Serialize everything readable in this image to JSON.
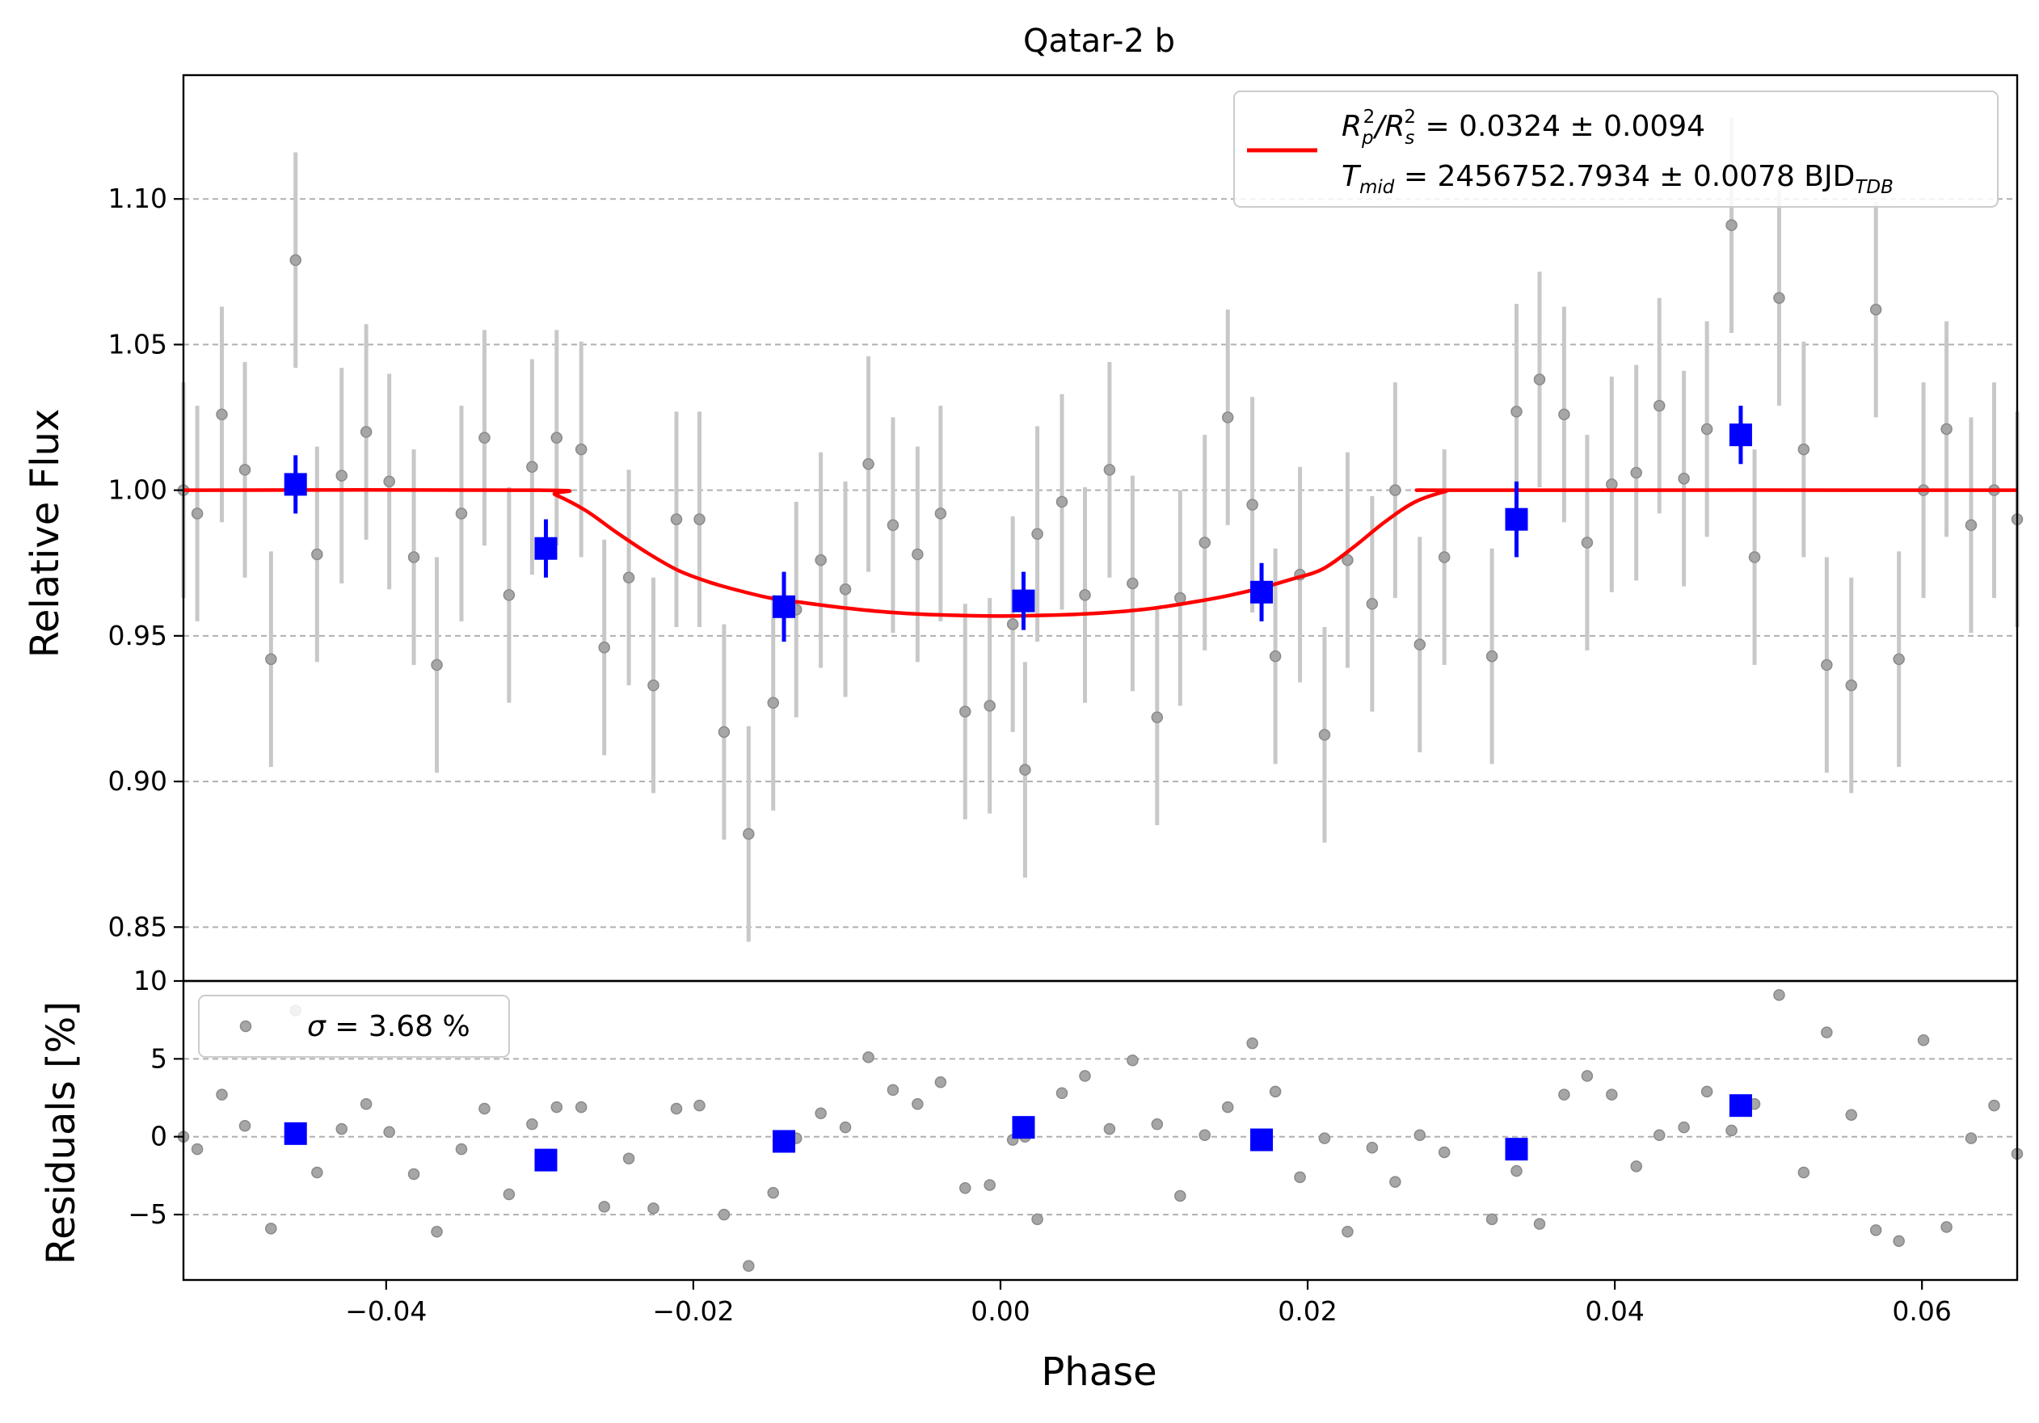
{
  "chart_data": [
    {
      "type": "scatter",
      "panel": "transit",
      "title": "Qatar-2 b",
      "xlabel": "",
      "ylabel": "Relative Flux",
      "xlim": [
        -0.0532,
        0.0662
      ],
      "ylim": [
        0.8315,
        1.1425
      ],
      "yticks": [
        0.85,
        0.9,
        0.95,
        1.0,
        1.05,
        1.1
      ],
      "ytick_labels": [
        "0.85",
        "0.90",
        "0.95",
        "1.00",
        "1.05",
        "1.10"
      ],
      "grid": "y, dashed",
      "legend_position": "top-right",
      "legend": {
        "rp_prefix": "R",
        "rp_sub": "p",
        "rp_sup": "2",
        "rs_prefix": "/R",
        "rs_sub": "s",
        "rs_sup": "2",
        "rprs_value": " = 0.0324 ± 0.0094",
        "tmid_prefix": "T",
        "tmid_sub": "mid",
        "tmid_value": " = 2456752.7934 ± 0.0078 BJD",
        "tmid_unit_sub": "TDB"
      },
      "model": {
        "phase": [
          -0.0532,
          -0.03,
          -0.029,
          -0.027,
          -0.025,
          -0.023,
          -0.021,
          -0.019,
          -0.017,
          -0.015,
          -0.013,
          -0.01,
          -0.007,
          -0.004,
          0.0,
          0.004,
          0.007,
          0.01,
          0.013,
          0.015,
          0.017,
          0.019,
          0.021,
          0.023,
          0.025,
          0.027,
          0.029,
          0.03,
          0.0662
        ],
        "flux": [
          1.0,
          1.0,
          0.9985,
          0.993,
          0.9855,
          0.9785,
          0.9725,
          0.9685,
          0.9655,
          0.963,
          0.9615,
          0.9595,
          0.958,
          0.9572,
          0.9568,
          0.9572,
          0.958,
          0.9595,
          0.962,
          0.964,
          0.9665,
          0.9695,
          0.973,
          0.9805,
          0.989,
          0.996,
          0.9996,
          1.0,
          1.0
        ]
      },
      "observations": {
        "phase": [
          -0.0532,
          -0.0523,
          -0.0507,
          -0.0492,
          -0.0475,
          -0.0459,
          -0.0445,
          -0.0429,
          -0.0413,
          -0.0398,
          -0.0382,
          -0.0367,
          -0.0351,
          -0.0336,
          -0.032,
          -0.0305,
          -0.0289,
          -0.0273,
          -0.0258,
          -0.0242,
          -0.0226,
          -0.0211,
          -0.0196,
          -0.018,
          -0.0164,
          -0.0148,
          -0.0133,
          -0.0117,
          -0.0101,
          -0.0086,
          -0.007,
          -0.0054,
          -0.0039,
          -0.0023,
          -0.0007,
          0.0008,
          0.0016,
          0.0024,
          0.004,
          0.0055,
          0.0071,
          0.0086,
          0.0102,
          0.0117,
          0.0133,
          0.0148,
          0.0164,
          0.0179,
          0.0195,
          0.0211,
          0.0226,
          0.0242,
          0.0257,
          0.0273,
          0.0289,
          0.032,
          0.0336,
          0.0351,
          0.0367,
          0.0382,
          0.0398,
          0.0414,
          0.0429,
          0.0445,
          0.046,
          0.0476,
          0.0491,
          0.0507,
          0.0523,
          0.0538,
          0.0554,
          0.057,
          0.0585,
          0.0601,
          0.0616,
          0.0632,
          0.0647,
          0.0662
        ],
        "flux": [
          1.0,
          0.992,
          1.026,
          1.007,
          0.942,
          1.079,
          0.978,
          1.005,
          1.02,
          1.003,
          0.977,
          0.94,
          0.992,
          1.018,
          0.964,
          1.008,
          1.018,
          1.014,
          0.946,
          0.97,
          0.933,
          0.99,
          0.99,
          0.917,
          0.882,
          0.927,
          0.959,
          0.976,
          0.966,
          1.009,
          0.988,
          0.978,
          0.992,
          0.924,
          0.926,
          0.954,
          0.904,
          0.985,
          0.996,
          0.964,
          1.007,
          0.968,
          0.922,
          0.963,
          0.982,
          1.025,
          0.995,
          0.943,
          0.971,
          0.916,
          0.976,
          0.961,
          1.0,
          0.947,
          0.977,
          0.943,
          1.027,
          1.038,
          1.026,
          0.982,
          1.002,
          1.006,
          1.029,
          1.004,
          1.021,
          1.091,
          0.977,
          1.066,
          1.014,
          0.94,
          0.933,
          1.062,
          0.942,
          1.0,
          1.021,
          0.988,
          1.0,
          0.99
        ],
        "error": 0.037
      },
      "binned": {
        "phase": [
          -0.0459,
          -0.0296,
          -0.0141,
          0.0015,
          0.017,
          0.0336,
          0.0482
        ],
        "flux": [
          1.002,
          0.98,
          0.96,
          0.962,
          0.965,
          0.99,
          1.019
        ],
        "error": [
          0.01,
          0.01,
          0.012,
          0.01,
          0.01,
          0.013,
          0.01
        ]
      }
    },
    {
      "type": "scatter",
      "panel": "residuals",
      "title": "",
      "xlabel": "Phase",
      "ylabel": "Residuals [%]",
      "xlim": [
        -0.0532,
        0.0662
      ],
      "ylim": [
        -9.2,
        10.0
      ],
      "xticks": [
        -0.04,
        -0.02,
        0.0,
        0.02,
        0.04,
        0.06
      ],
      "xtick_labels": [
        "−0.04",
        "−0.02",
        "0.00",
        "0.02",
        "0.04",
        "0.06"
      ],
      "yticks": [
        -5,
        0,
        5,
        10
      ],
      "ytick_labels": [
        "−5",
        "0",
        "5",
        "10"
      ],
      "grid": "y, dashed",
      "legend_position": "top-left",
      "legend": {
        "sigma_symbol": "σ",
        "sigma_value": " = 3.68 %"
      },
      "observations": {
        "phase": [
          -0.0532,
          -0.0523,
          -0.0507,
          -0.0492,
          -0.0475,
          -0.0459,
          -0.0445,
          -0.0429,
          -0.0413,
          -0.0398,
          -0.0382,
          -0.0367,
          -0.0351,
          -0.0336,
          -0.032,
          -0.0305,
          -0.0289,
          -0.0273,
          -0.0258,
          -0.0242,
          -0.0226,
          -0.0211,
          -0.0196,
          -0.018,
          -0.0164,
          -0.0148,
          -0.0133,
          -0.0117,
          -0.0101,
          -0.0086,
          -0.007,
          -0.0054,
          -0.0039,
          -0.0023,
          -0.0007,
          0.0008,
          0.0016,
          0.0024,
          0.004,
          0.0055,
          0.0071,
          0.0086,
          0.0102,
          0.0117,
          0.0133,
          0.0148,
          0.0164,
          0.0179,
          0.0195,
          0.0211,
          0.0226,
          0.0242,
          0.0257,
          0.0273,
          0.0289,
          0.032,
          0.0336,
          0.0351,
          0.0367,
          0.0382,
          0.0398,
          0.0414,
          0.0429,
          0.0445,
          0.046,
          0.0476,
          0.0491,
          0.0507,
          0.0523,
          0.0538,
          0.0554,
          0.057,
          0.0585,
          0.0601,
          0.0616,
          0.0632,
          0.0647,
          0.0662
        ],
        "residual": [
          0.0,
          -0.8,
          2.7,
          0.7,
          -5.9,
          8.1,
          -2.3,
          0.5,
          2.1,
          0.3,
          -2.4,
          -6.1,
          -0.8,
          1.8,
          -3.7,
          0.8,
          1.9,
          1.9,
          -4.5,
          -1.4,
          -4.6,
          1.8,
          2.0,
          -5.0,
          -8.3,
          -3.6,
          -0.1,
          1.5,
          0.6,
          5.1,
          3.0,
          2.1,
          3.5,
          -3.3,
          -3.1,
          -0.2,
          0.0,
          -5.3,
          2.8,
          3.9,
          0.5,
          4.9,
          0.8,
          -3.8,
          0.1,
          1.9,
          6.0,
          2.9,
          -2.6,
          -0.1,
          -6.1,
          -0.7,
          -2.9,
          0.1,
          -1.0,
          -5.3,
          -2.2,
          -5.6,
          2.7,
          3.9,
          2.7,
          -1.9,
          0.1,
          0.6,
          2.9,
          0.4,
          2.1,
          9.1,
          -2.3,
          6.7,
          1.4,
          -6.0,
          -6.7,
          6.2,
          -5.8,
          -0.1,
          2.0,
          -1.1
        ]
      },
      "binned": {
        "phase": [
          -0.0459,
          -0.0296,
          -0.0141,
          0.0015,
          0.017,
          0.0336,
          0.0482
        ],
        "residual": [
          0.2,
          -1.5,
          -0.3,
          0.6,
          -0.2,
          -0.8,
          2.0
        ]
      }
    }
  ]
}
